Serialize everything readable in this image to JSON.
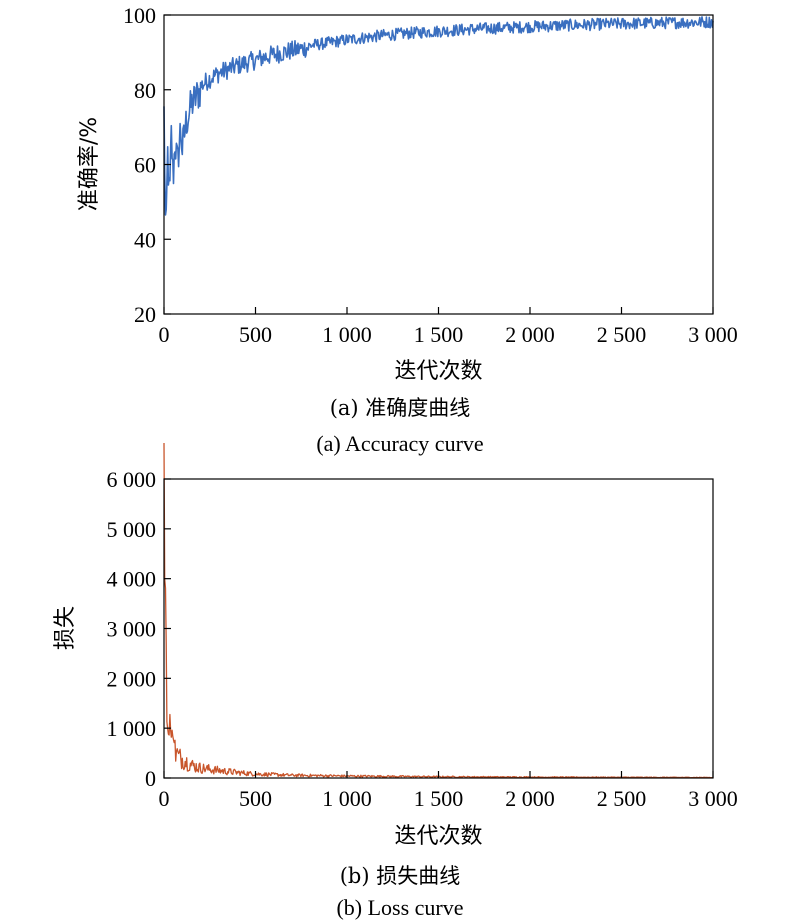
{
  "chart_data": [
    {
      "id": "accuracy",
      "type": "line",
      "title": "",
      "xlabel": "迭代次数",
      "ylabel": "准确率/%",
      "caption_cn": "(a) 准确度曲线",
      "caption_en": "(a) Accuracy curve",
      "xlim": [
        0,
        3000
      ],
      "ylim": [
        20,
        100
      ],
      "xticks": [
        0,
        500,
        1000,
        1500,
        2000,
        2500,
        3000
      ],
      "xtick_labels": [
        "0",
        "500",
        "1 000",
        "1 500",
        "2 000",
        "2 500",
        "3 000"
      ],
      "yticks": [
        20,
        40,
        60,
        80,
        100
      ],
      "ytick_labels": [
        "20",
        "40",
        "60",
        "80",
        "100"
      ],
      "grid": false,
      "legend": "none",
      "color": "#3a6fc0",
      "series": [
        {
          "x": [
            0,
            10,
            20,
            30,
            40,
            50,
            60,
            75,
            90,
            100,
            120,
            150,
            200,
            250,
            300,
            400,
            500,
            600,
            700,
            800,
            900,
            1000,
            1100,
            1200,
            1300,
            1400,
            1500,
            1600,
            1700,
            1800,
            1900,
            2000,
            2100,
            2200,
            2300,
            2400,
            2500,
            2600,
            2700,
            2800,
            2900,
            3000
          ],
          "y": [
            76,
            40,
            65,
            52,
            70,
            58,
            68,
            62,
            72,
            66,
            73,
            78,
            82,
            84,
            85.5,
            87.5,
            89,
            90.5,
            91.5,
            92.5,
            93.2,
            94,
            94.6,
            95.2,
            95.6,
            96,
            96.3,
            96.6,
            96.9,
            97.1,
            97.3,
            97.5,
            97.7,
            97.9,
            98,
            98.2,
            98.3,
            98.4,
            98.5,
            98.6,
            98.7,
            98.8
          ]
        }
      ]
    },
    {
      "id": "loss",
      "type": "line",
      "title": "",
      "xlabel": "迭代次数",
      "ylabel": "损失",
      "caption_cn": "(b) 损失曲线",
      "caption_en": "(b) Loss curve",
      "xlim": [
        0,
        3000
      ],
      "ylim": [
        0,
        6000
      ],
      "xticks": [
        0,
        500,
        1000,
        1500,
        2000,
        2500,
        3000
      ],
      "xtick_labels": [
        "0",
        "500",
        "1 000",
        "1 500",
        "2 000",
        "2 500",
        "3 000"
      ],
      "yticks": [
        0,
        1000,
        2000,
        3000,
        4000,
        5000,
        6000
      ],
      "ytick_labels": [
        "0",
        "1 000",
        "2 000",
        "3 000",
        "4 000",
        "5 000",
        "6 000"
      ],
      "grid": false,
      "legend": "none",
      "color": "#c8552b",
      "series": [
        {
          "x": [
            0,
            5,
            10,
            15,
            20,
            25,
            30,
            40,
            50,
            60,
            80,
            100,
            150,
            200,
            300,
            400,
            500,
            700,
            1000,
            1500,
            2000,
            2500,
            3000
          ],
          "y": [
            5900,
            4500,
            2800,
            1500,
            1000,
            800,
            1350,
            700,
            1100,
            550,
            420,
            380,
            260,
            200,
            150,
            110,
            80,
            55,
            40,
            25,
            18,
            14,
            10
          ]
        }
      ]
    }
  ]
}
